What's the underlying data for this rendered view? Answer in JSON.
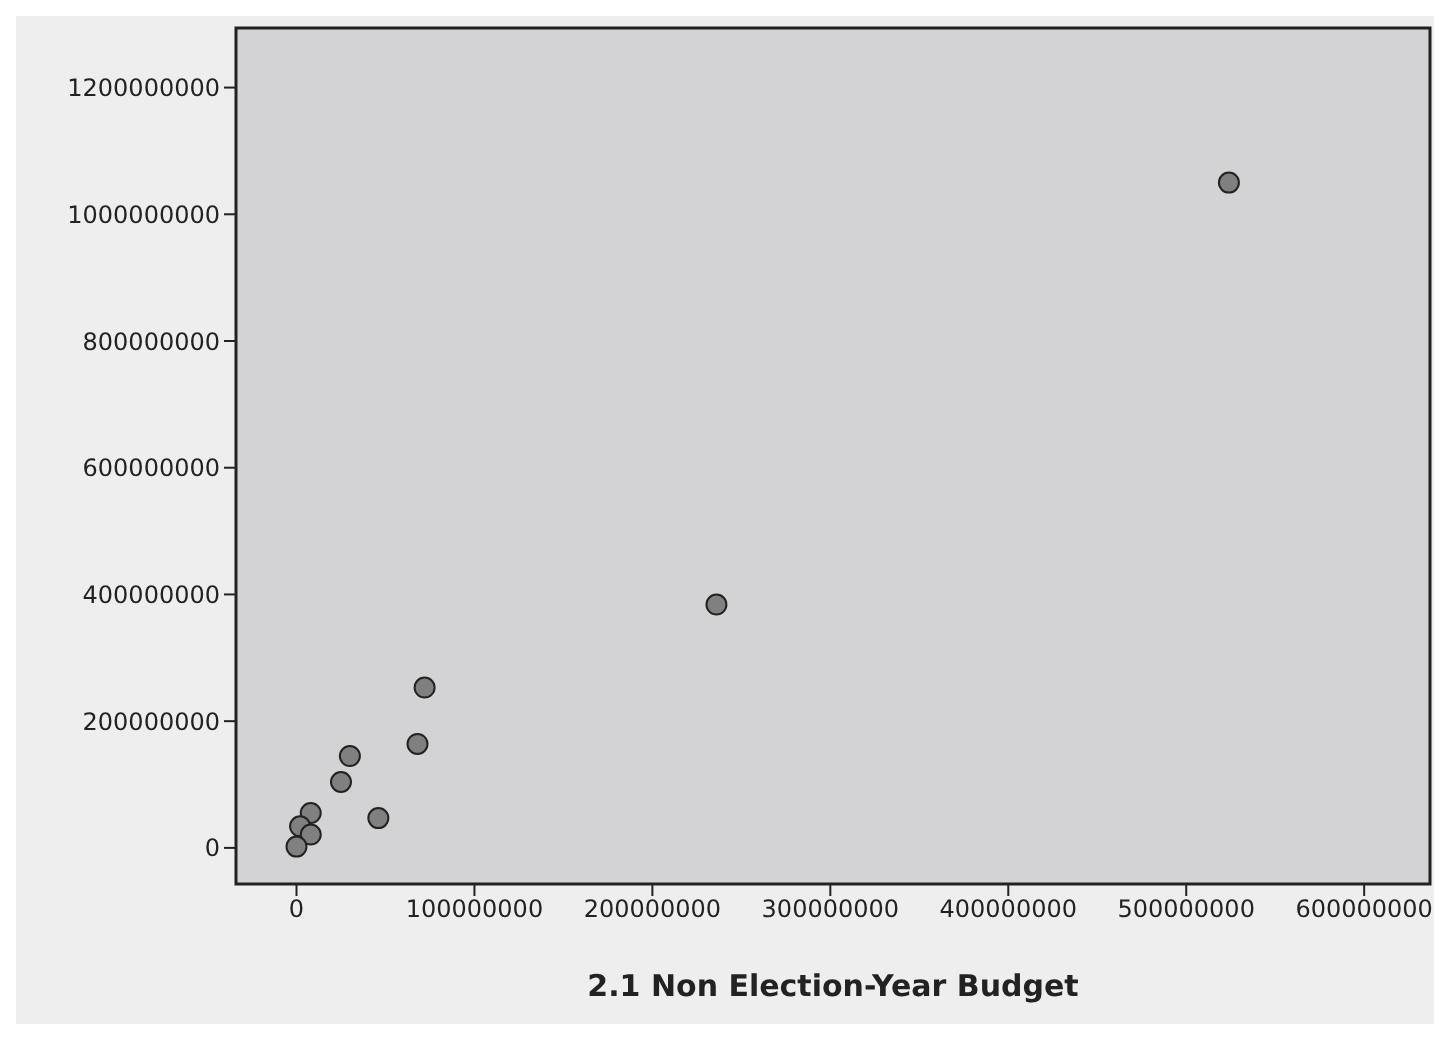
{
  "chart_data": {
    "type": "scatter",
    "xlabel": "2.1 Non Election-Year Budget",
    "x": [
      524000000,
      236000000,
      72000000,
      68000000,
      30000000,
      25000000,
      46000000,
      8000000,
      2000000,
      8000000,
      0
    ],
    "values": [
      1050000000,
      384000000,
      253000000,
      164000000,
      145000000,
      104000000,
      47000000,
      55000000,
      34000000,
      21000000,
      2000000
    ],
    "color": "#808080",
    "marker": "circle",
    "xlim": [
      -34000000,
      637000000
    ],
    "ylim": [
      -57000000,
      1294000000
    ],
    "xticks": [
      0,
      100000000,
      200000000,
      300000000,
      400000000,
      500000000,
      600000000
    ],
    "yticks": [
      0,
      200000000,
      400000000,
      600000000,
      800000000,
      1000000000,
      1200000000
    ]
  }
}
